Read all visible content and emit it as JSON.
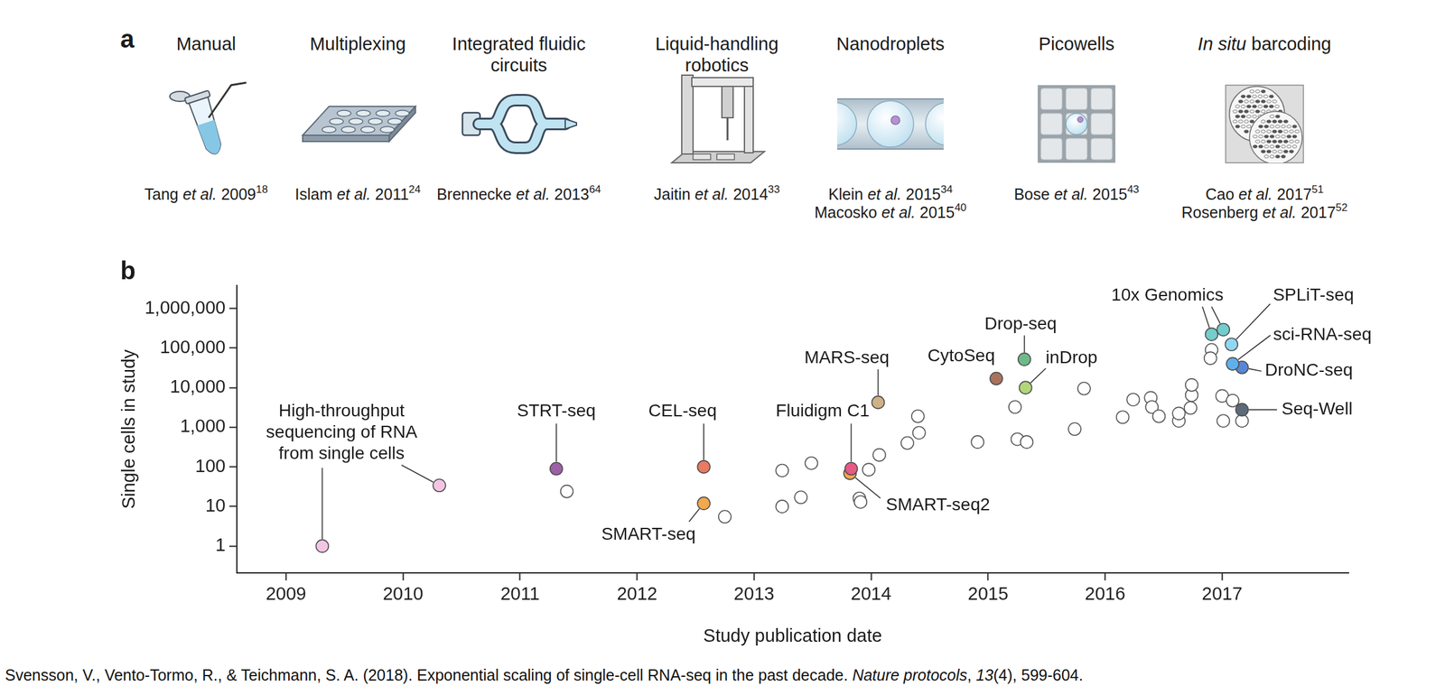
{
  "panel_a": {
    "panel": "a",
    "methods": [
      {
        "title": [
          [
            {
              "text": "Manual"
            }
          ]
        ],
        "refs": [
          [
            {
              "text": "Tang "
            },
            {
              "text": "et al.",
              "italic": true
            },
            {
              "text": " 2009"
            },
            {
              "text": "18",
              "sup": true
            }
          ]
        ]
      },
      {
        "title": [
          [
            {
              "text": "Multiplexing"
            }
          ]
        ],
        "refs": [
          [
            {
              "text": "Islam "
            },
            {
              "text": "et al.",
              "italic": true
            },
            {
              "text": " 2011"
            },
            {
              "text": "24",
              "sup": true
            }
          ]
        ]
      },
      {
        "title": [
          [
            {
              "text": "Integrated fluidic"
            }
          ],
          [
            {
              "text": "circuits"
            }
          ]
        ],
        "refs": [
          [
            {
              "text": "Brennecke "
            },
            {
              "text": "et al.",
              "italic": true
            },
            {
              "text": " 2013"
            },
            {
              "text": "64",
              "sup": true
            }
          ]
        ]
      },
      {
        "title": [
          [
            {
              "text": "Liquid-handling"
            }
          ],
          [
            {
              "text": "robotics"
            }
          ]
        ],
        "refs": [
          [
            {
              "text": "Jaitin "
            },
            {
              "text": "et al.",
              "italic": true
            },
            {
              "text": " 2014"
            },
            {
              "text": "33",
              "sup": true
            }
          ]
        ]
      },
      {
        "title": [
          [
            {
              "text": "Nanodroplets"
            }
          ]
        ],
        "refs": [
          [
            {
              "text": "Klein "
            },
            {
              "text": "et al.",
              "italic": true
            },
            {
              "text": " 2015"
            },
            {
              "text": "34",
              "sup": true
            }
          ],
          [
            {
              "text": "Macosko "
            },
            {
              "text": "et al.",
              "italic": true
            },
            {
              "text": " 2015"
            },
            {
              "text": "40",
              "sup": true
            }
          ]
        ]
      },
      {
        "title": [
          [
            {
              "text": "Picowells"
            }
          ]
        ],
        "refs": [
          [
            {
              "text": "Bose "
            },
            {
              "text": "et al.",
              "italic": true
            },
            {
              "text": " 2015"
            },
            {
              "text": "43",
              "sup": true
            }
          ]
        ]
      },
      {
        "title": [
          [
            {
              "text": "In situ",
              "italic": true
            },
            {
              "text": " barcoding"
            }
          ]
        ],
        "refs": [
          [
            {
              "text": "Cao "
            },
            {
              "text": "et al.",
              "italic": true
            },
            {
              "text": " 2017"
            },
            {
              "text": "51",
              "sup": true
            }
          ],
          [
            {
              "text": "Rosenberg "
            },
            {
              "text": "et al.",
              "italic": true
            },
            {
              "text": " 2017"
            },
            {
              "text": "52",
              "sup": true
            }
          ]
        ]
      }
    ]
  },
  "chart_data": {
    "panel": "b",
    "type": "scatter",
    "x_label": "Study publication date",
    "y_label": "Single cells in study",
    "xlim": [
      2008.58,
      2018.08
    ],
    "xticks": [
      2009,
      2010,
      2011,
      2012,
      2013,
      2014,
      2015,
      2016,
      2017
    ],
    "ylim": [
      0.21,
      3800000
    ],
    "yticks": [
      1,
      10,
      100,
      {
        "value": 1000,
        "label": "1,000"
      },
      {
        "value": 10000,
        "label": "10,000"
      },
      {
        "value": 100000,
        "label": "100,000"
      },
      {
        "value": 1000000,
        "label": "1,000,000"
      }
    ],
    "log": "y",
    "grid": false,
    "marker": "circle",
    "series": [
      {
        "name": "High-throughput sequencing of RNA from single cells",
        "color": "#f2c6e3",
        "x": [
          2009.31,
          2010.31
        ],
        "values": [
          1,
          34
        ]
      },
      {
        "name": "STRT-seq",
        "color": "#9c5fa8",
        "x": [
          2011.31
        ],
        "values": [
          90
        ]
      },
      {
        "name": "CEL-seq",
        "color": "#ea7a62",
        "x": [
          2012.57
        ],
        "values": [
          100
        ]
      },
      {
        "name": "SMART-seq",
        "color": "#f3a84c",
        "x": [
          2012.57
        ],
        "values": [
          12
        ]
      },
      {
        "name": "Fluidigm C1",
        "color": "#e65a87",
        "x": [
          2013.83
        ],
        "values": [
          90
        ]
      },
      {
        "name": "SMART-seq2",
        "color": "#f3a84c",
        "x": [
          2013.82
        ],
        "values": [
          69
        ]
      },
      {
        "name": "MARS-seq",
        "color": "#cdb287",
        "x": [
          2014.06
        ],
        "values": [
          4250
        ]
      },
      {
        "name": "CytoSeq",
        "color": "#a9725e",
        "x": [
          2015.07
        ],
        "values": [
          17000
        ]
      },
      {
        "name": "Drop-seq",
        "color": "#6dba88",
        "x": [
          2015.31
        ],
        "values": [
          52000
        ]
      },
      {
        "name": "inDrop",
        "color": "#b2d67a",
        "x": [
          2015.32
        ],
        "values": [
          10000
        ]
      },
      {
        "name": "10x Genomics",
        "color": "#74cccc",
        "x": [
          2016.91,
          2017.01
        ],
        "values": [
          223000,
          292000
        ]
      },
      {
        "name": "SPLiT-seq",
        "color": "#8fd8f2",
        "x": [
          2017.08
        ],
        "values": [
          124000
        ]
      },
      {
        "name": "sci-RNA-seq",
        "color": "#5fb0ea",
        "x": [
          2017.09
        ],
        "values": [
          40000
        ]
      },
      {
        "name": "DroNC-seq",
        "color": "#5b86d4",
        "x": [
          2017.17
        ],
        "values": [
          32500
        ]
      },
      {
        "name": "Seq-Well",
        "color": "#5d6b78",
        "x": [
          2017.17
        ],
        "values": [
          2770
        ]
      }
    ],
    "other_studies": {
      "color": "#555555",
      "marker": "open circle",
      "x": [
        2011.4,
        2012.75,
        2013.24,
        2013.24,
        2013.4,
        2013.49,
        2013.9,
        2013.91,
        2013.98,
        2014.07,
        2014.31,
        2014.41,
        2014.4,
        2014.91,
        2015.23,
        2015.25,
        2015.33,
        2015.74,
        2015.82,
        2016.15,
        2016.24,
        2016.39,
        2016.4,
        2016.46,
        2016.63,
        2016.63,
        2016.73,
        2016.74,
        2016.74,
        2016.91,
        2016.9,
        2017.0,
        2017.01,
        2017.09,
        2017.17
      ],
      "values": [
        24,
        5.5,
        81,
        10,
        17,
        124,
        16,
        13,
        85,
        200,
        400,
        725,
        1900,
        425,
        3250,
        500,
        425,
        900,
        9500,
        1800,
        5000,
        5550,
        3250,
        1900,
        1450,
        2230,
        3080,
        6500,
        11700,
        90000,
        55500,
        6180,
        1450,
        4720,
        1450
      ]
    }
  },
  "caption": [
    {
      "text": "Svensson, V., Vento-Tormo, R., & Teichmann, S. A. (2018). Exponential scaling of single-cell RNA-seq in the past decade. "
    },
    {
      "text": "Nature protocols",
      "italic": true
    },
    {
      "text": ", "
    },
    {
      "text": "13",
      "italic": true
    },
    {
      "text": "(4), 599-604."
    }
  ]
}
